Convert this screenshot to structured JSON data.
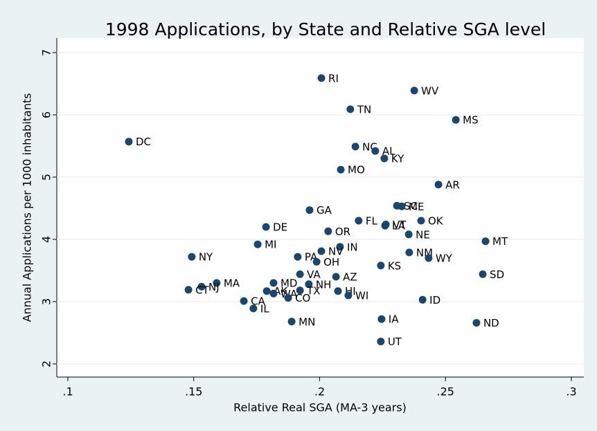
{
  "chart_data": {
    "type": "scatter",
    "title": "1998 Applications, by State and Relative SGA level",
    "xlabel": "Relative Real SGA (MA-3 years)",
    "ylabel": "Annual Applications per 1000 inhabitants",
    "color": "#1a476f",
    "grid": true,
    "xlim": [
      0.1,
      0.3
    ],
    "xticks": [
      {
        "value": 0.1,
        "label": ".1"
      },
      {
        "value": 0.15,
        "label": ".15"
      },
      {
        "value": 0.2,
        "label": ".2"
      },
      {
        "value": 0.25,
        "label": ".25"
      },
      {
        "value": 0.3,
        "label": ".3"
      }
    ],
    "ylim": [
      2,
      7
    ],
    "yticks": [
      2,
      3,
      4,
      5,
      6,
      7
    ],
    "labels": [
      "RI",
      "WV",
      "TN",
      "MS",
      "DC",
      "NC",
      "AL",
      "KY",
      "MO",
      "AR",
      "SC",
      "ME",
      "GA",
      "FL",
      "OK",
      "VT",
      "LA",
      "DE",
      "OR",
      "NE",
      "MT",
      "MI",
      "IN",
      "NV",
      "NM",
      "NY",
      "PA",
      "WY",
      "OH",
      "KS",
      "SD",
      "VA",
      "AZ",
      "MA",
      "MD",
      "NH",
      "NJ",
      "CT",
      "TX",
      "AK",
      "HI",
      "WA",
      "WI",
      "CO",
      "ID",
      "CA",
      "IL",
      "IA",
      "MN",
      "ND",
      "UT"
    ],
    "x": [
      0.2007,
      0.2376,
      0.2122,
      0.2541,
      0.1242,
      0.2142,
      0.2221,
      0.2257,
      0.2084,
      0.2472,
      0.2307,
      0.2326,
      0.196,
      0.2155,
      0.2403,
      0.2263,
      0.226,
      0.1787,
      0.2034,
      0.2354,
      0.2659,
      0.1754,
      0.2081,
      0.2007,
      0.2356,
      0.1492,
      0.1913,
      0.2433,
      0.1988,
      0.2243,
      0.2648,
      0.1922,
      0.2065,
      0.1591,
      0.1817,
      0.1957,
      0.1531,
      0.1479,
      0.1922,
      0.179,
      0.2073,
      0.1817,
      0.2114,
      0.1875,
      0.2409,
      0.1699,
      0.1737,
      0.2246,
      0.1889,
      0.2623,
      0.2243
    ],
    "values": [
      6.59,
      6.39,
      6.09,
      5.92,
      5.57,
      5.49,
      5.42,
      5.3,
      5.12,
      4.88,
      4.54,
      4.53,
      4.47,
      4.3,
      4.3,
      4.24,
      4.22,
      4.2,
      4.13,
      4.08,
      3.97,
      3.92,
      3.88,
      3.81,
      3.79,
      3.72,
      3.72,
      3.7,
      3.64,
      3.58,
      3.44,
      3.44,
      3.4,
      3.3,
      3.3,
      3.28,
      3.24,
      3.19,
      3.18,
      3.17,
      3.17,
      3.13,
      3.1,
      3.06,
      3.03,
      3.01,
      2.89,
      2.72,
      2.68,
      2.66,
      2.36
    ]
  }
}
